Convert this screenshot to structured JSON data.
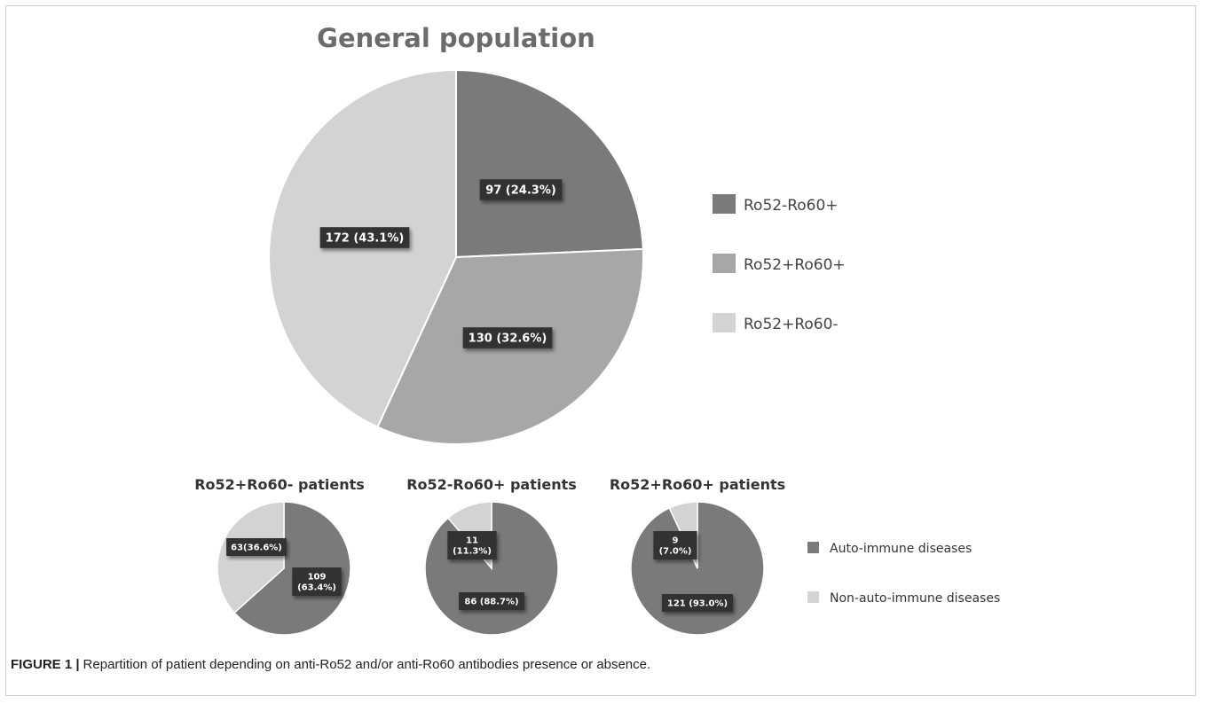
{
  "caption": {
    "label": "FIGURE 1 |",
    "text": "Repartition of patient depending on anti-Ro52 and/or anti-Ro60 antibodies presence or absence."
  },
  "colors": {
    "ro52_ro60pos": "#7a7a7a",
    "ro52pos_ro60pos": "#a7a7a7",
    "ro52pos_ro60neg": "#d3d3d3",
    "autoimmune": "#7a7a7a",
    "nonautoimmune": "#d3d3d3",
    "label_box": "#333333"
  },
  "chart_data": [
    {
      "type": "pie",
      "title": "General population",
      "slices": [
        {
          "name": "Ro52-Ro60+",
          "value": 97,
          "label": "97 (24.3%)",
          "color": "#7a7a7a"
        },
        {
          "name": "Ro52+Ro60+",
          "value": 130,
          "label": "130 (32.6%)",
          "color": "#a7a7a7"
        },
        {
          "name": "Ro52+Ro60-",
          "value": 172,
          "label": "172 (43.1%)",
          "color": "#d3d3d3"
        }
      ],
      "legend": [
        "Ro52-Ro60+",
        "Ro52+Ro60+",
        "Ro52+Ro60-"
      ],
      "legend_position": "right"
    },
    {
      "type": "pie",
      "title": "Ro52+Ro60- patients",
      "slices": [
        {
          "name": "Auto-immune diseases",
          "value": 109,
          "label": [
            "109",
            "(63.4%)"
          ],
          "color": "#7a7a7a"
        },
        {
          "name": "Non-auto-immune diseases",
          "value": 63,
          "label": [
            "63(36.6%)"
          ],
          "color": "#d3d3d3"
        }
      ]
    },
    {
      "type": "pie",
      "title": "Ro52-Ro60+ patients",
      "slices": [
        {
          "name": "Auto-immune diseases",
          "value": 86,
          "label": [
            "86 (88.7%)"
          ],
          "color": "#7a7a7a"
        },
        {
          "name": "Non-auto-immune diseases",
          "value": 11,
          "label": [
            "11",
            "(11.3%)"
          ],
          "color": "#d3d3d3"
        }
      ]
    },
    {
      "type": "pie",
      "title": "Ro52+Ro60+ patients",
      "slices": [
        {
          "name": "Auto-immune diseases",
          "value": 121,
          "label": [
            "121 (93.0%)"
          ],
          "color": "#7a7a7a"
        },
        {
          "name": "Non-auto-immune diseases",
          "value": 9,
          "label": [
            "9",
            "(7.0%)"
          ],
          "color": "#d3d3d3"
        }
      ],
      "legend": [
        "Auto-immune diseases",
        "Non-auto-immune diseases"
      ],
      "legend_position": "right"
    }
  ]
}
